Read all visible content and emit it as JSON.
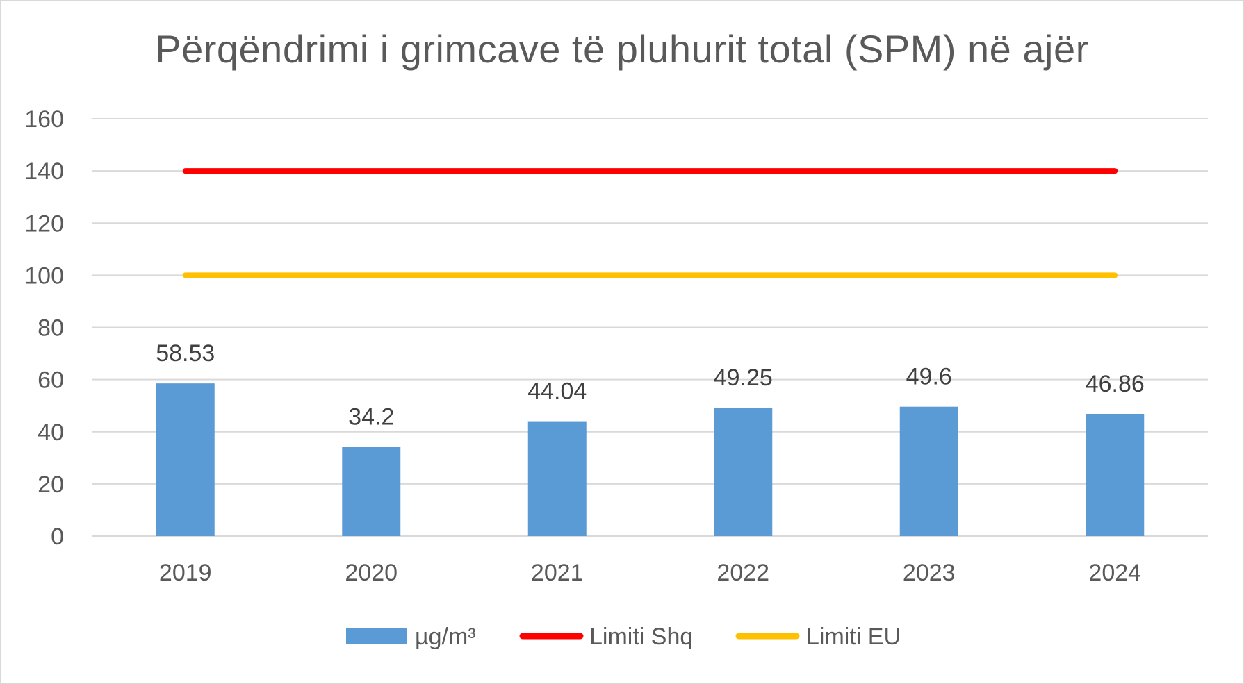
{
  "chart_data": {
    "type": "bar",
    "title": "Përqëndrimi i grimcave të pluhurit total (SPM) në ajër",
    "categories": [
      "2019",
      "2020",
      "2021",
      "2022",
      "2023",
      "2024"
    ],
    "series": [
      {
        "name": "µg/m³",
        "type": "bar",
        "color": "#5b9bd5",
        "values": [
          58.53,
          34.2,
          44.04,
          49.25,
          49.6,
          46.86
        ],
        "data_labels": [
          "58.53",
          "34.2",
          "44.04",
          "49.25",
          "49.6",
          "46.86"
        ]
      },
      {
        "name": "Limiti Shq",
        "type": "line",
        "color": "#ff0000",
        "values": [
          140,
          140,
          140,
          140,
          140,
          140
        ]
      },
      {
        "name": "Limiti EU",
        "type": "line",
        "color": "#ffc000",
        "values": [
          100,
          100,
          100,
          100,
          100,
          100
        ]
      }
    ],
    "ylim": [
      0,
      160
    ],
    "yticks": [
      0,
      20,
      40,
      60,
      80,
      100,
      120,
      140,
      160
    ],
    "xlabel": "",
    "ylabel": "",
    "grid": true,
    "legend": "bottom"
  }
}
